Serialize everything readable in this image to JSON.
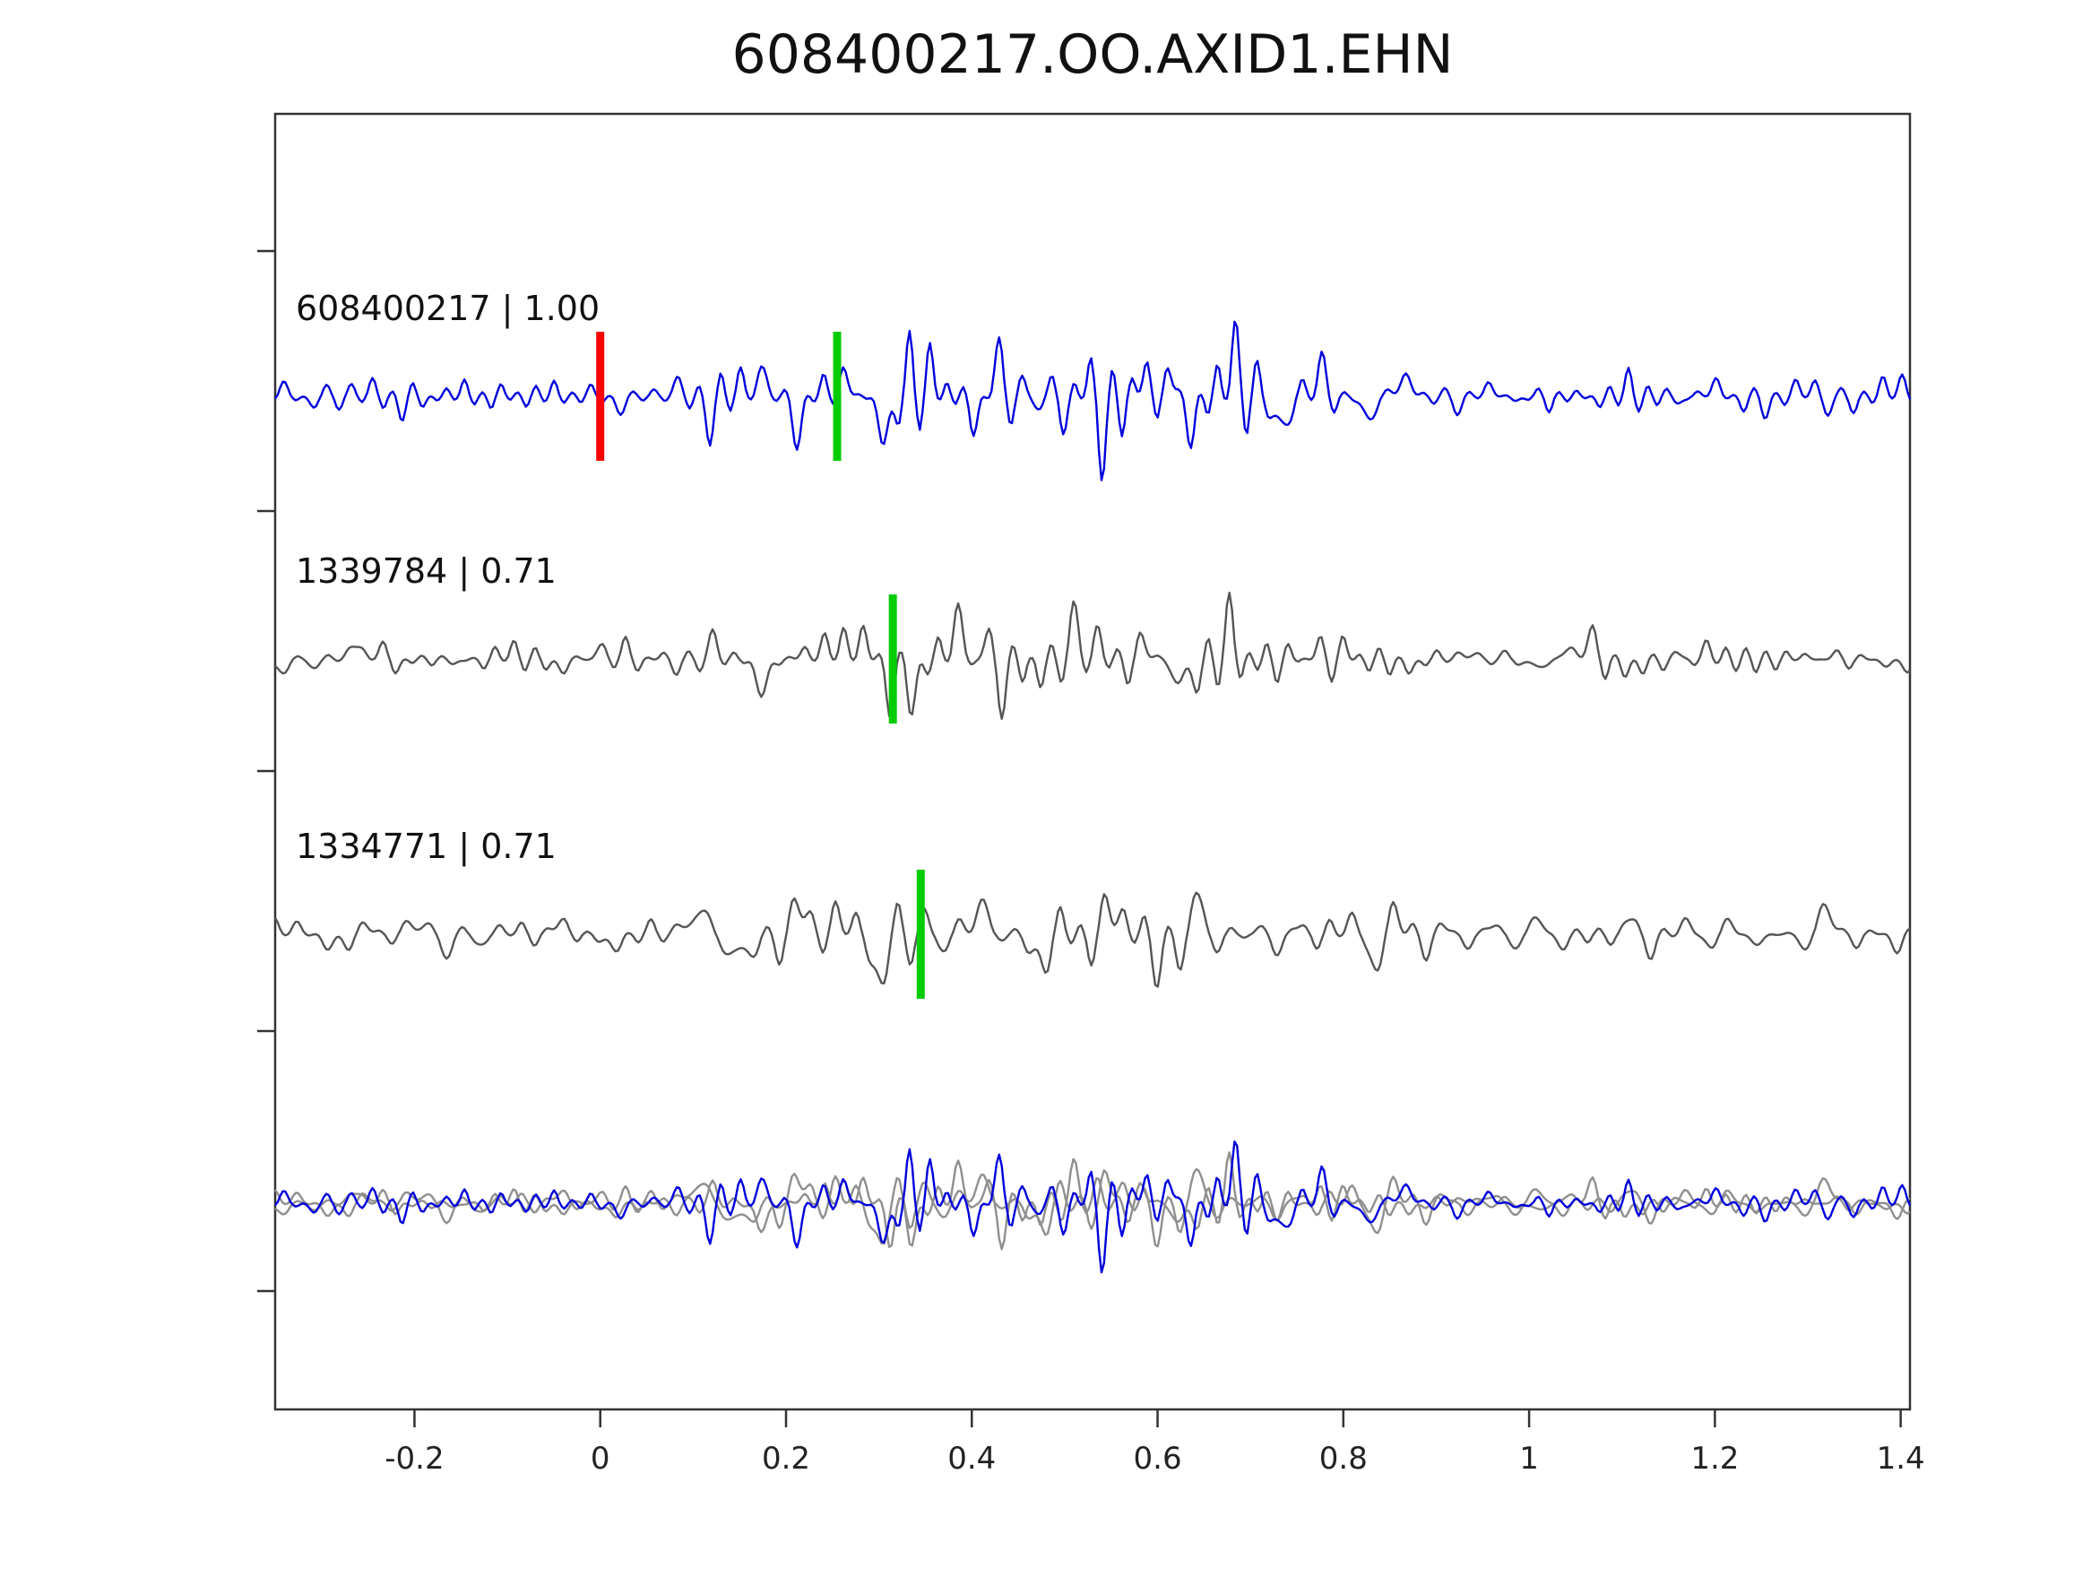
{
  "chart_data": {
    "type": "line",
    "title": "608400217.OO.AXID1.EHN",
    "xlabel": "",
    "ylabel": "",
    "xlim": [
      -0.35,
      1.41
    ],
    "x_ticks": [
      -0.2,
      0,
      0.2,
      0.4,
      0.6,
      0.8,
      1,
      1.2,
      1.4
    ],
    "x_tick_labels": [
      "-0.2",
      "0",
      "0.2",
      "0.4",
      "0.6",
      "0.8",
      "1",
      "1.2",
      "1.4"
    ],
    "grid": false,
    "legend_position": "none",
    "envelope": {
      "base": 0.3,
      "peak": 0.7,
      "center": 0.47,
      "width": 0.3
    },
    "colors": {
      "template_trace": "#0000dd",
      "detection_trace": "#555555",
      "overlay_gray": "#8f8f8f",
      "pick_red": "#ff0000",
      "pick_green": "#00cc00",
      "axis": "#333333",
      "text": "#111111",
      "tick_text": "#222222"
    },
    "traces": [
      {
        "id": "608400217",
        "label": "608400217 | 1.00",
        "correlation": 1.0,
        "color": "#0000dd",
        "seed": 17,
        "amp": 115,
        "markers": [
          {
            "x": 0.0,
            "color": "#ff0000",
            "name": "template-pick-marker"
          },
          {
            "x": 0.255,
            "color": "#00cc00",
            "name": "detection-pick-marker"
          }
        ]
      },
      {
        "id": "1339784",
        "label": "1339784 | 0.71",
        "correlation": 0.71,
        "color": "#555555",
        "seed": 42,
        "amp": 120,
        "markers": [
          {
            "x": 0.315,
            "color": "#00cc00",
            "name": "detection-pick-marker"
          }
        ]
      },
      {
        "id": "1334771",
        "label": "1334771 | 0.71",
        "correlation": 0.71,
        "color": "#555555",
        "seed": 77,
        "amp": 112,
        "markers": [
          {
            "x": 0.345,
            "color": "#00cc00",
            "name": "detection-pick-marker"
          }
        ]
      }
    ],
    "overlay": {
      "components": [
        {
          "seed": 42,
          "color": "#8f8f8f",
          "amp": 92
        },
        {
          "seed": 77,
          "color": "#8f8f8f",
          "amp": 92
        },
        {
          "seed": 17,
          "color": "#0000dd",
          "amp": 95
        }
      ]
    }
  }
}
